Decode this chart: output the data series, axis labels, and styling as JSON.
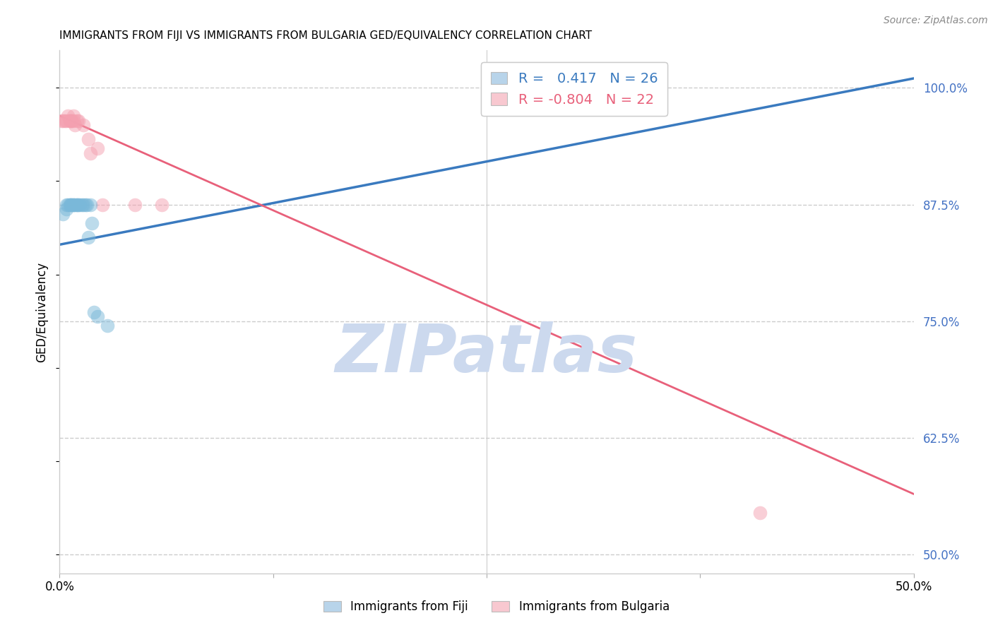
{
  "title": "IMMIGRANTS FROM FIJI VS IMMIGRANTS FROM BULGARIA GED/EQUIVALENCY CORRELATION CHART",
  "source": "Source: ZipAtlas.com",
  "ylabel": "GED/Equivalency",
  "yticks": [
    0.5,
    0.625,
    0.75,
    0.875,
    1.0
  ],
  "ytick_labels": [
    "50.0%",
    "62.5%",
    "75.0%",
    "87.5%",
    "100.0%"
  ],
  "xticks": [
    0.0,
    0.125,
    0.25,
    0.375,
    0.5
  ],
  "xtick_labels": [
    "0.0%",
    "",
    "",
    "",
    "50.0%"
  ],
  "xmin": 0.0,
  "xmax": 0.5,
  "ymin": 0.48,
  "ymax": 1.04,
  "fiji_color": "#7ab8d9",
  "bulgaria_color": "#f4a0b0",
  "fiji_label": "Immigrants from Fiji",
  "bulgaria_label": "Immigrants from Bulgaria",
  "fiji_R": 0.417,
  "fiji_N": 26,
  "bulgaria_R": -0.804,
  "bulgaria_N": 22,
  "fiji_scatter_x": [
    0.002,
    0.004,
    0.004,
    0.005,
    0.006,
    0.006,
    0.007,
    0.007,
    0.008,
    0.008,
    0.009,
    0.01,
    0.01,
    0.011,
    0.012,
    0.013,
    0.014,
    0.015,
    0.016,
    0.017,
    0.018,
    0.019,
    0.02,
    0.022,
    0.028,
    0.32
  ],
  "fiji_scatter_y": [
    0.865,
    0.875,
    0.87,
    0.875,
    0.875,
    0.875,
    0.875,
    0.875,
    0.875,
    0.875,
    0.875,
    0.875,
    0.875,
    0.875,
    0.875,
    0.875,
    0.875,
    0.875,
    0.875,
    0.84,
    0.875,
    0.855,
    0.76,
    0.755,
    0.745,
    1.0
  ],
  "bulgaria_scatter_x": [
    0.001,
    0.002,
    0.003,
    0.004,
    0.005,
    0.006,
    0.006,
    0.007,
    0.007,
    0.008,
    0.008,
    0.009,
    0.01,
    0.011,
    0.014,
    0.017,
    0.018,
    0.022,
    0.025,
    0.044,
    0.06,
    0.41
  ],
  "bulgaria_scatter_y": [
    0.965,
    0.965,
    0.965,
    0.965,
    0.97,
    0.965,
    0.965,
    0.965,
    0.965,
    0.965,
    0.97,
    0.96,
    0.965,
    0.965,
    0.96,
    0.945,
    0.93,
    0.935,
    0.875,
    0.875,
    0.875,
    0.545
  ],
  "fiji_line_x": [
    0.0,
    0.5
  ],
  "fiji_line_y": [
    0.832,
    1.01
  ],
  "bulgaria_line_x": [
    0.0,
    0.5
  ],
  "bulgaria_line_y": [
    0.97,
    0.565
  ],
  "watermark": "ZIPatlas",
  "watermark_color": "#ccd9ee",
  "legend_fiji_color": "#b8d4ea",
  "legend_bulgaria_color": "#f8c8d0",
  "grid_color": "#cccccc",
  "fiji_line_color": "#3a7abf",
  "bulgaria_line_color": "#e8607a"
}
